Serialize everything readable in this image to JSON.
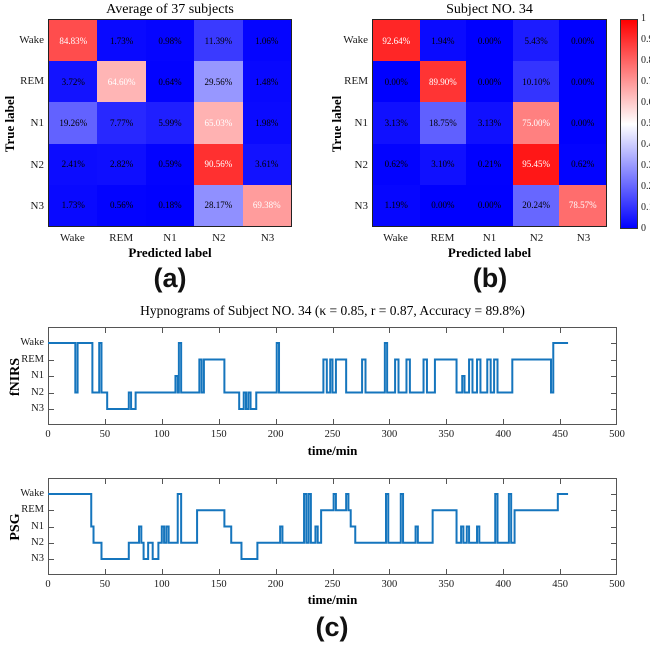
{
  "figure": {
    "panel_a_letter": "(a)",
    "panel_b_letter": "(b)",
    "panel_c_letter": "(c)",
    "accent_line_color": "#1575bd",
    "heat_red": "#ff0000",
    "heat_blue": "#0000ff"
  },
  "chart_data": [
    {
      "type": "heatmap",
      "panel": "a",
      "title": "Average of 37 subjects",
      "xlabel": "Predicted label",
      "ylabel": "True label",
      "categories": [
        "Wake",
        "REM",
        "N1",
        "N2",
        "N3"
      ],
      "matrix_percent": [
        [
          84.83,
          1.73,
          0.98,
          11.39,
          1.06
        ],
        [
          3.72,
          64.6,
          0.64,
          29.56,
          1.48
        ],
        [
          19.26,
          7.77,
          5.99,
          65.03,
          1.98
        ],
        [
          2.41,
          2.82,
          0.59,
          90.56,
          3.61
        ],
        [
          1.73,
          0.56,
          0.18,
          28.17,
          69.38
        ]
      ],
      "colormap": "blue-white-red",
      "vmin": 0,
      "vmax": 1
    },
    {
      "type": "heatmap",
      "panel": "b",
      "title": "Subject NO. 34",
      "xlabel": "Predicted label",
      "ylabel": "True label",
      "categories": [
        "Wake",
        "REM",
        "N1",
        "N2",
        "N3"
      ],
      "matrix_percent": [
        [
          92.64,
          1.94,
          0.0,
          5.43,
          0.0
        ],
        [
          0.0,
          89.9,
          0.0,
          10.1,
          0.0
        ],
        [
          3.13,
          18.75,
          3.13,
          75.0,
          0.0
        ],
        [
          0.62,
          3.1,
          0.21,
          95.45,
          0.62
        ],
        [
          1.19,
          0.0,
          0.0,
          20.24,
          78.57
        ]
      ],
      "colormap": "blue-white-red",
      "vmin": 0,
      "vmax": 1,
      "colorbar_ticks": [
        "1",
        "0.9",
        "0.8",
        "0.7",
        "0.6",
        "0.5",
        "0.4",
        "0.3",
        "0.2",
        "0.1",
        "0"
      ]
    },
    {
      "type": "line",
      "subtype": "hypnogram-steps",
      "panel": "c",
      "title": "Hypnograms of Subject NO. 34  (κ = 0.85, r = 0.87, Accuracy = 89.8%)",
      "xlabel": "time/min",
      "xlim": [
        0,
        500
      ],
      "x_ticks": [
        0,
        50,
        100,
        150,
        200,
        250,
        300,
        350,
        400,
        450,
        500
      ],
      "y_categories": [
        "Wake",
        "REM",
        "N1",
        "N2",
        "N3"
      ],
      "stage_index_note": "0=Wake, 1=REM, 2=N1, 3=N2, 4=N3; steps are [time_min, stage_index]",
      "line_color": "#1575bd",
      "grid": false,
      "series": [
        {
          "name": "fNIRS",
          "steps": [
            [
              0,
              0
            ],
            [
              24,
              3
            ],
            [
              26,
              0
            ],
            [
              39,
              3
            ],
            [
              45,
              0
            ],
            [
              47,
              3
            ],
            [
              52,
              4
            ],
            [
              71,
              3
            ],
            [
              73,
              4
            ],
            [
              77,
              3
            ],
            [
              112,
              2
            ],
            [
              114,
              3
            ],
            [
              115,
              0
            ],
            [
              117,
              3
            ],
            [
              133,
              1
            ],
            [
              135,
              3
            ],
            [
              137,
              1
            ],
            [
              155,
              3
            ],
            [
              168,
              4
            ],
            [
              172,
              3
            ],
            [
              174,
              4
            ],
            [
              176,
              3
            ],
            [
              178,
              4
            ],
            [
              183,
              3
            ],
            [
              201,
              0
            ],
            [
              203,
              3
            ],
            [
              242,
              1
            ],
            [
              245,
              3
            ],
            [
              248,
              1
            ],
            [
              250,
              3
            ],
            [
              253,
              1
            ],
            [
              262,
              3
            ],
            [
              276,
              1
            ],
            [
              279,
              3
            ],
            [
              296,
              0
            ],
            [
              298,
              3
            ],
            [
              305,
              1
            ],
            [
              308,
              3
            ],
            [
              315,
              1
            ],
            [
              318,
              3
            ],
            [
              330,
              1
            ],
            [
              333,
              3
            ],
            [
              340,
              1
            ],
            [
              359,
              3
            ],
            [
              364,
              2
            ],
            [
              366,
              3
            ],
            [
              370,
              1
            ],
            [
              373,
              3
            ],
            [
              377,
              1
            ],
            [
              380,
              3
            ],
            [
              386,
              1
            ],
            [
              389,
              3
            ],
            [
              392,
              1
            ],
            [
              395,
              3
            ],
            [
              408,
              1
            ],
            [
              442,
              3
            ],
            [
              444,
              0
            ],
            [
              457,
              0
            ]
          ]
        },
        {
          "name": "PSG",
          "steps": [
            [
              0,
              0
            ],
            [
              38,
              2
            ],
            [
              40,
              3
            ],
            [
              47,
              4
            ],
            [
              71,
              3
            ],
            [
              80,
              2
            ],
            [
              82,
              3
            ],
            [
              84,
              4
            ],
            [
              88,
              3
            ],
            [
              92,
              4
            ],
            [
              97,
              3
            ],
            [
              100,
              2
            ],
            [
              102,
              3
            ],
            [
              104,
              2
            ],
            [
              106,
              3
            ],
            [
              114,
              0
            ],
            [
              117,
              3
            ],
            [
              131,
              1
            ],
            [
              155,
              2
            ],
            [
              161,
              3
            ],
            [
              170,
              4
            ],
            [
              184,
              3
            ],
            [
              204,
              2
            ],
            [
              206,
              3
            ],
            [
              225,
              0
            ],
            [
              227,
              3
            ],
            [
              229,
              0
            ],
            [
              231,
              3
            ],
            [
              235,
              2
            ],
            [
              237,
              3
            ],
            [
              240,
              1
            ],
            [
              251,
              0
            ],
            [
              253,
              1
            ],
            [
              262,
              0
            ],
            [
              264,
              1
            ],
            [
              266,
              2
            ],
            [
              270,
              3
            ],
            [
              297,
              0
            ],
            [
              299,
              3
            ],
            [
              310,
              0
            ],
            [
              312,
              3
            ],
            [
              323,
              2
            ],
            [
              325,
              3
            ],
            [
              338,
              1
            ],
            [
              359,
              3
            ],
            [
              363,
              2
            ],
            [
              365,
              3
            ],
            [
              368,
              2
            ],
            [
              370,
              3
            ],
            [
              377,
              2
            ],
            [
              379,
              3
            ],
            [
              393,
              0
            ],
            [
              395,
              3
            ],
            [
              405,
              0
            ],
            [
              407,
              3
            ],
            [
              410,
              1
            ],
            [
              448,
              0
            ],
            [
              457,
              0
            ]
          ]
        }
      ]
    }
  ]
}
